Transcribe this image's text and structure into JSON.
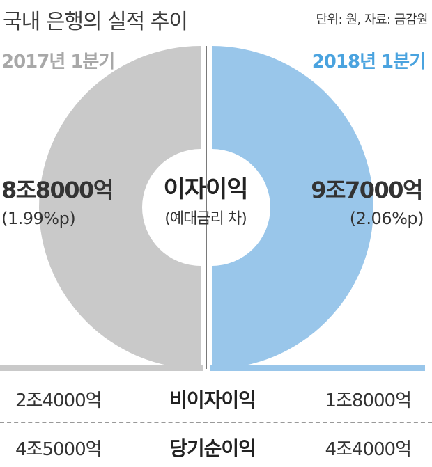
{
  "header": {
    "title": "국내 은행의 실적 추이",
    "unit_note": "단위: 원, 자료: 금감원"
  },
  "colors": {
    "gray": "#c9c9c9",
    "gray_text": "#a8a8a8",
    "blue": "#99c6ea",
    "blue_text": "#4aa3df",
    "divider": "#7a7a7a"
  },
  "chart_data": {
    "type": "pie",
    "categories": [
      "2017년 1분기",
      "2018년 1분기"
    ],
    "center_label": "이자이익",
    "center_sublabel": "(예대금리 차)",
    "series": [
      {
        "name": "이자이익",
        "values": [
          "8조8000억",
          "9조7000억"
        ]
      },
      {
        "name": "예대금리 차",
        "values": [
          "(1.99%p)",
          "(2.06%p)"
        ]
      }
    ]
  },
  "periods": {
    "left": {
      "label": "2017년 1분기",
      "interest_income": "8조8000억",
      "spread": "(1.99%p)"
    },
    "right": {
      "label": "2018년 1분기",
      "interest_income": "9조7000억",
      "spread": "(2.06%p)"
    }
  },
  "table": {
    "rows": [
      {
        "label": "비이자이익",
        "left": "2조4000억",
        "right": "1조8000억"
      },
      {
        "label": "당기순이익",
        "left": "4조5000억",
        "right": "4조4000억"
      }
    ]
  }
}
